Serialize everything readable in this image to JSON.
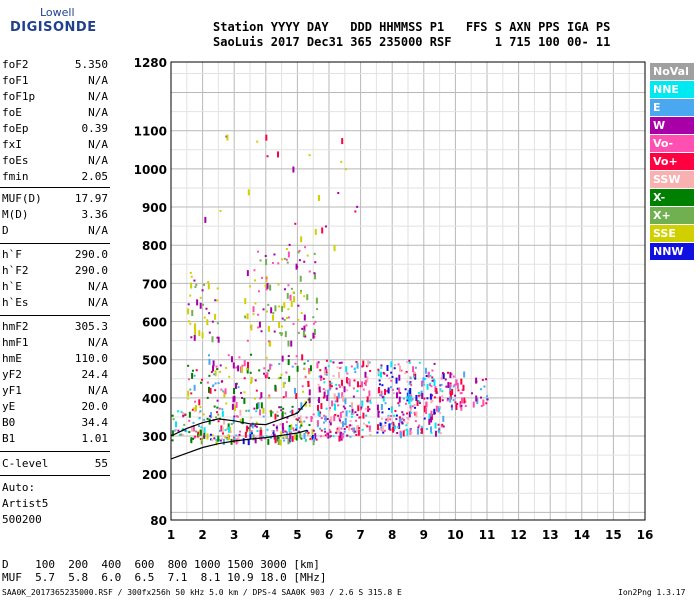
{
  "logo": {
    "top": "Lowell",
    "bottom": "DIGISONDE"
  },
  "header": {
    "line1": "Station YYYY DAY   DDD HHMMSS P1   FFS S AXN PPS IGA PS",
    "line2": "SaoLuis 2017 Dec31 365 235000 RSF      1 715 100 00- 11"
  },
  "params_group1": [
    {
      "label": "foF2",
      "value": "5.350"
    },
    {
      "label": "foF1",
      "value": "N/A"
    },
    {
      "label": "foF1p",
      "value": "N/A"
    },
    {
      "label": "foE",
      "value": "N/A"
    },
    {
      "label": "foEp",
      "value": "0.39"
    },
    {
      "label": "fxI",
      "value": "N/A"
    },
    {
      "label": "foEs",
      "value": "N/A"
    },
    {
      "label": "fmin",
      "value": "2.05"
    }
  ],
  "params_group2": [
    {
      "label": "MUF(D)",
      "value": "17.97"
    },
    {
      "label": "M(D)",
      "value": "3.36"
    },
    {
      "label": "D",
      "value": "N/A"
    }
  ],
  "params_group3": [
    {
      "label": "h`F",
      "value": "290.0"
    },
    {
      "label": "h`F2",
      "value": "290.0"
    },
    {
      "label": "h`E",
      "value": "N/A"
    },
    {
      "label": "h`Es",
      "value": "N/A"
    }
  ],
  "params_group4": [
    {
      "label": "hmF2",
      "value": "305.3"
    },
    {
      "label": "hmF1",
      "value": "N/A"
    },
    {
      "label": "hmE",
      "value": "110.0"
    },
    {
      "label": "yF2",
      "value": "24.4"
    },
    {
      "label": "yF1",
      "value": "N/A"
    },
    {
      "label": "yE",
      "value": "20.0"
    },
    {
      "label": "B0",
      "value": "34.4"
    },
    {
      "label": "B1",
      "value": "1.01"
    }
  ],
  "params_group5": [
    {
      "label": "C-level",
      "value": "55"
    }
  ],
  "autoscaling": {
    "line1": "Auto:",
    "line2": "Artist5",
    "line3": "500200"
  },
  "legend": [
    {
      "label": "NoVal",
      "color": "#a0a0a0"
    },
    {
      "label": "NNE",
      "color": "#00e8f0"
    },
    {
      "label": "E",
      "color": "#4aa8f0"
    },
    {
      "label": "W",
      "color": "#a800a8"
    },
    {
      "label": "Vo-",
      "color": "#ff4fb0"
    },
    {
      "label": "Vo+",
      "color": "#ff0040"
    },
    {
      "label": "SSW",
      "color": "#f8b0b0"
    },
    {
      "label": "X-",
      "color": "#008000"
    },
    {
      "label": "X+",
      "color": "#70b050"
    },
    {
      "label": "SSE",
      "color": "#d0d000"
    },
    {
      "label": "NNW",
      "color": "#1010e0"
    }
  ],
  "distance_table": {
    "d_line": "D    100  200  400  600  800 1000 1500 3000 [km]",
    "muf_line": "MUF  5.7  5.8  6.0  6.5  7.1  8.1 10.9 18.0 [MHz]"
  },
  "footer": {
    "left": "SAA0K_2017365235000.RSF / 300fx256h 50 kHz 5.0 km / DPS-4 SAA0K 903 / 2.6 S 315.8 E",
    "right": "Ion2Png 1.3.17"
  },
  "chart_data": {
    "type": "scatter",
    "title": "",
    "xlabel": "",
    "ylabel": "",
    "xlim": [
      1,
      16
    ],
    "ylim": [
      80,
      1280
    ],
    "x_ticks": [
      1,
      2,
      3,
      4,
      5,
      6,
      7,
      8,
      9,
      10,
      11,
      12,
      13,
      14,
      15,
      16
    ],
    "y_ticks": [
      80,
      200,
      300,
      400,
      500,
      600,
      700,
      800,
      900,
      1000,
      1100,
      1280
    ],
    "grid": true,
    "legend_position": "right",
    "traces": [
      {
        "name": "virtual height trace (black)",
        "color": "#000000",
        "points": [
          [
            1.0,
            240
          ],
          [
            1.5,
            255
          ],
          [
            2.0,
            270
          ],
          [
            2.5,
            280
          ],
          [
            3.0,
            287
          ],
          [
            3.5,
            292
          ],
          [
            4.0,
            296
          ],
          [
            4.5,
            302
          ],
          [
            5.0,
            308
          ],
          [
            5.3,
            315
          ]
        ]
      },
      {
        "name": "F2 echo trace (black)",
        "color": "#000000",
        "points": [
          [
            1.0,
            300
          ],
          [
            1.5,
            320
          ],
          [
            2.0,
            335
          ],
          [
            2.5,
            345
          ],
          [
            3.0,
            340
          ],
          [
            3.5,
            332
          ],
          [
            4.0,
            330
          ],
          [
            4.5,
            345
          ],
          [
            5.0,
            360
          ],
          [
            5.3,
            390
          ]
        ]
      }
    ],
    "echo_regions": [
      {
        "x": [
          1.0,
          5.6
        ],
        "h": [
          290,
          370
        ],
        "density": 260,
        "palette": [
          "#00e8f0",
          "#4aa8f0",
          "#a800a8",
          "#ff4fb0",
          "#ff0040",
          "#008000",
          "#70b050",
          "#d0d000",
          "#1010e0",
          "#f8b0b0"
        ]
      },
      {
        "x": [
          1.5,
          5.4
        ],
        "h": [
          370,
          520
        ],
        "density": 160,
        "palette": [
          "#ff0040",
          "#a800a8",
          "#ff4fb0",
          "#d0d000",
          "#008000",
          "#4aa8f0"
        ]
      },
      {
        "x": [
          5.6,
          7.3
        ],
        "h": [
          300,
          500
        ],
        "density": 220,
        "palette": [
          "#ff0040",
          "#a800a8",
          "#ff4fb0",
          "#4aa8f0",
          "#00e8f0",
          "#f8b0b0"
        ]
      },
      {
        "x": [
          7.5,
          9.6
        ],
        "h": [
          310,
          500
        ],
        "density": 260,
        "palette": [
          "#ff0040",
          "#a800a8",
          "#ff4fb0",
          "#4aa8f0",
          "#00e8f0",
          "#1010e0",
          "#f8b0b0"
        ]
      },
      {
        "x": [
          9.6,
          11.0
        ],
        "h": [
          380,
          470
        ],
        "density": 60,
        "palette": [
          "#ff0040",
          "#a800a8",
          "#ff4fb0",
          "#4aa8f0"
        ]
      },
      {
        "x": [
          3.3,
          5.6
        ],
        "h": [
          550,
          800
        ],
        "density": 120,
        "palette": [
          "#d0d000",
          "#70b050",
          "#ff4fb0",
          "#a800a8"
        ]
      },
      {
        "x": [
          1.5,
          2.5
        ],
        "h": [
          560,
          740
        ],
        "density": 40,
        "palette": [
          "#d0d000",
          "#a800a8",
          "#70b050"
        ]
      },
      {
        "x": [
          2.0,
          7.0
        ],
        "h": [
          800,
          1100
        ],
        "density": 25,
        "palette": [
          "#d0d000",
          "#a800a8",
          "#ff0040"
        ]
      }
    ]
  }
}
